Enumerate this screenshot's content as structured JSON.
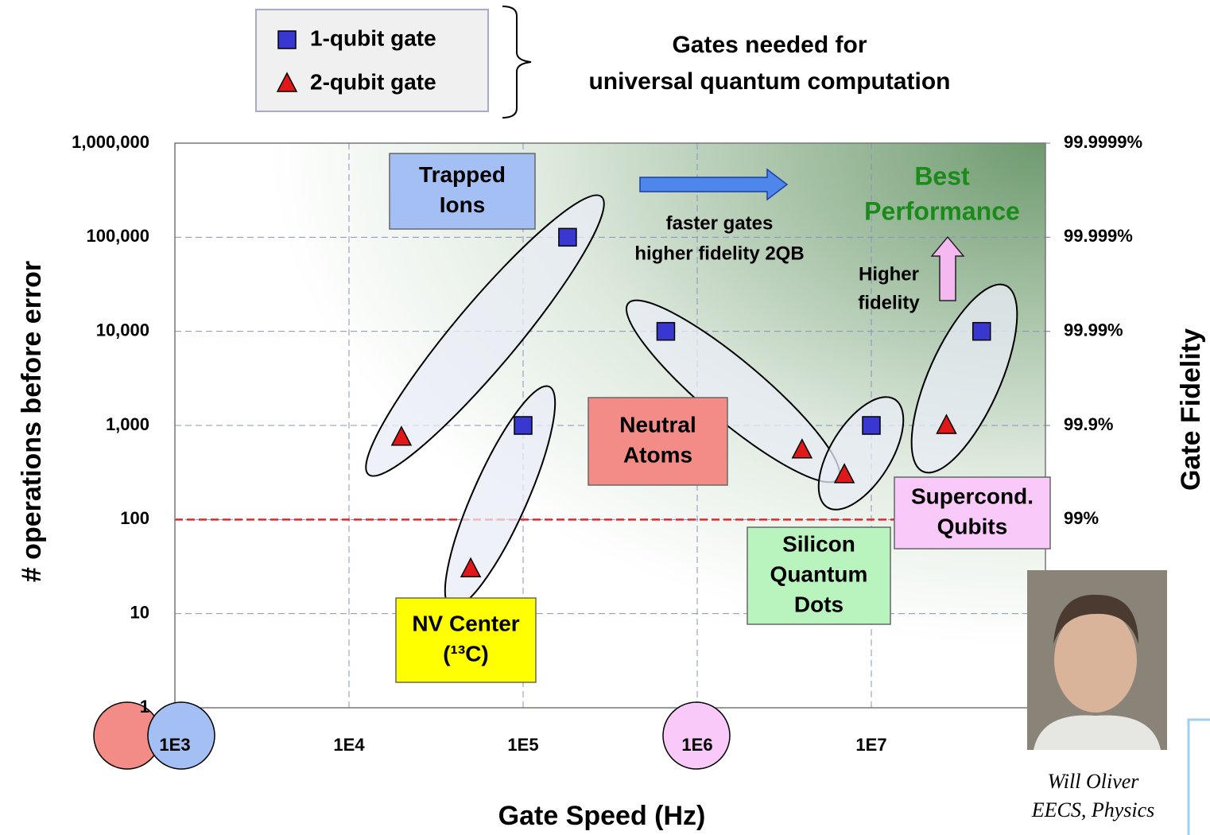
{
  "chart_data": {
    "type": "scatter",
    "title_lines": [
      "Gates needed for",
      "universal quantum computation"
    ],
    "x_label": "Gate Speed (Hz)",
    "y_label": "# operations before error",
    "y2_label": "Gate Fidelity",
    "x_scale": "log",
    "y_scale": "log",
    "y2_scale": "fidelity",
    "xlim": [
      1000,
      100000000
    ],
    "ylim": [
      1,
      1000000
    ],
    "y2lim": [
      0,
      99.9999
    ],
    "xticks": [
      {
        "value": 1000,
        "label": "1E3"
      },
      {
        "value": 10000,
        "label": "1E4"
      },
      {
        "value": 100000,
        "label": "1E5"
      },
      {
        "value": 1000000,
        "label": "1E6"
      },
      {
        "value": 10000000,
        "label": "1E7"
      }
    ],
    "yticks": [
      1,
      10,
      100,
      {
        "value": 1000,
        "label": "1,000"
      },
      {
        "value": 10000,
        "label": "10,000"
      },
      {
        "value": 100000,
        "label": "100,000"
      },
      {
        "value": 1000000,
        "label": "1,000,000"
      }
    ],
    "y2ticks": [
      {
        "value": 99,
        "label": "99%"
      },
      {
        "value": 99.9,
        "label": "99.9%"
      },
      {
        "value": 99.99,
        "label": "99.99%"
      },
      {
        "value": 99.999,
        "label": "99.999%"
      },
      {
        "value": 99.9999,
        "label": "99.9999%"
      }
    ],
    "grid": true,
    "reference_line": {
      "value": 100,
      "color": "#e8262a"
    },
    "series": [
      {
        "name": "1-qubit gate",
        "marker": "square",
        "color": "#3838d0",
        "x": [
          180000,
          100000,
          660000,
          10000000,
          43000000
        ],
        "values": [
          100000,
          1000,
          10000,
          1000,
          10000
        ]
      },
      {
        "name": "2-qubit gate",
        "marker": "triangle",
        "color": "#e01818",
        "x": [
          20000,
          50000,
          4000000,
          7000000,
          27000000
        ],
        "values": [
          750,
          30,
          550,
          300,
          1000
        ]
      }
    ],
    "groups": [
      {
        "lines": [
          "Trapped",
          "Ions"
        ],
        "color": "#a4bff4"
      },
      {
        "lines": [
          "NV Center",
          "(¹³C)"
        ],
        "color": "#ffff00"
      },
      {
        "lines": [
          "Neutral",
          "Atoms"
        ],
        "color": "#f38b86"
      },
      {
        "lines": [
          "Silicon",
          "Quantum",
          "Dots"
        ],
        "color": "#b9f3bd"
      },
      {
        "lines": [
          "Supercond.",
          "Qubits"
        ],
        "color": "#f9c9f9"
      }
    ],
    "annotations": {
      "speed": [
        "faster gates",
        "higher fidelity 2QB"
      ],
      "best": [
        "Best",
        "Performance"
      ],
      "fidelity": [
        "Higher",
        "fidelity"
      ]
    },
    "credit": [
      "Will Oliver",
      "EECS, Physics"
    ]
  }
}
